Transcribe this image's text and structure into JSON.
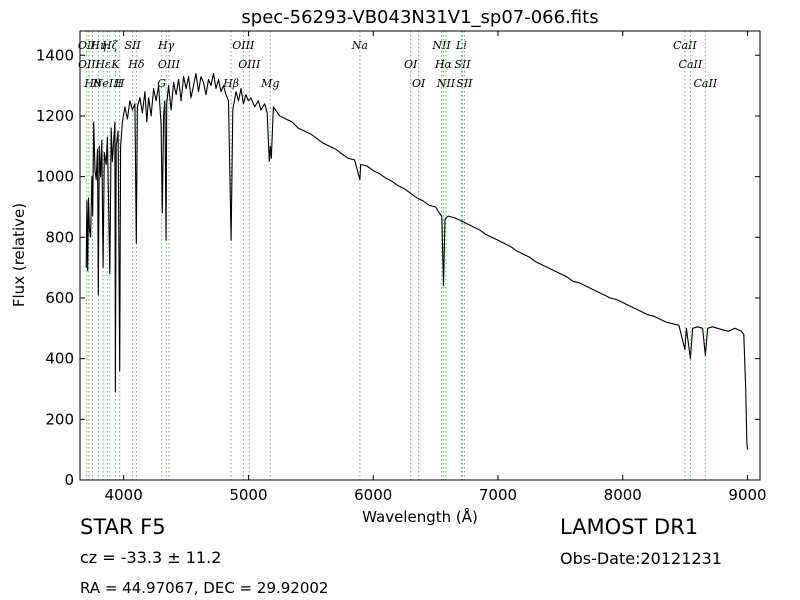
{
  "chart_data": {
    "type": "line",
    "title": "spec-56293-VB043N31V1_sp07-066.fits",
    "xlabel": "Wavelength (Å)",
    "ylabel": "Flux (relative)",
    "xlim": [
      3650,
      9100
    ],
    "ylim": [
      0,
      1480
    ],
    "x_ticks": [
      4000,
      5000,
      6000,
      7000,
      8000,
      9000
    ],
    "y_ticks": [
      0,
      200,
      400,
      600,
      800,
      1000,
      1200,
      1400
    ],
    "grid": false,
    "series": [
      {
        "line_color": "#000000",
        "points": [
          [
            3700,
            700
          ],
          [
            3705,
            920
          ],
          [
            3712,
            690
          ],
          [
            3718,
            930
          ],
          [
            3725,
            830
          ],
          [
            3735,
            800
          ],
          [
            3745,
            1000
          ],
          [
            3752,
            870
          ],
          [
            3760,
            1180
          ],
          [
            3770,
            1020
          ],
          [
            3780,
            990
          ],
          [
            3790,
            1090
          ],
          [
            3797,
            610
          ],
          [
            3805,
            1100
          ],
          [
            3815,
            1000
          ],
          [
            3825,
            1120
          ],
          [
            3835,
            700
          ],
          [
            3845,
            1080
          ],
          [
            3860,
            1040
          ],
          [
            3870,
            1130
          ],
          [
            3889,
            680
          ],
          [
            3900,
            1160
          ],
          [
            3910,
            1050
          ],
          [
            3930,
            1180
          ],
          [
            3934,
            290
          ],
          [
            3940,
            1100
          ],
          [
            3955,
            1150
          ],
          [
            3968,
            360
          ],
          [
            3975,
            1100
          ],
          [
            3990,
            1180
          ],
          [
            4010,
            1230
          ],
          [
            4030,
            1190
          ],
          [
            4050,
            1250
          ],
          [
            4070,
            1220
          ],
          [
            4090,
            1240
          ],
          [
            4101,
            780
          ],
          [
            4110,
            1230
          ],
          [
            4130,
            1260
          ],
          [
            4150,
            1210
          ],
          [
            4170,
            1280
          ],
          [
            4185,
            1180
          ],
          [
            4200,
            1260
          ],
          [
            4220,
            1200
          ],
          [
            4240,
            1290
          ],
          [
            4260,
            1250
          ],
          [
            4280,
            1300
          ],
          [
            4300,
            1170
          ],
          [
            4310,
            880
          ],
          [
            4320,
            1200
          ],
          [
            4330,
            1250
          ],
          [
            4340,
            790
          ],
          [
            4345,
            1240
          ],
          [
            4360,
            1300
          ],
          [
            4380,
            1220
          ],
          [
            4400,
            1310
          ],
          [
            4420,
            1270
          ],
          [
            4440,
            1320
          ],
          [
            4460,
            1250
          ],
          [
            4480,
            1330
          ],
          [
            4500,
            1290
          ],
          [
            4520,
            1330
          ],
          [
            4540,
            1260
          ],
          [
            4560,
            1300
          ],
          [
            4580,
            1340
          ],
          [
            4600,
            1280
          ],
          [
            4620,
            1330
          ],
          [
            4640,
            1310
          ],
          [
            4660,
            1270
          ],
          [
            4680,
            1320
          ],
          [
            4700,
            1300
          ],
          [
            4720,
            1340
          ],
          [
            4740,
            1290
          ],
          [
            4760,
            1320
          ],
          [
            4780,
            1280
          ],
          [
            4800,
            1300
          ],
          [
            4820,
            1270
          ],
          [
            4840,
            1250
          ],
          [
            4861,
            790
          ],
          [
            4875,
            1220
          ],
          [
            4900,
            1280
          ],
          [
            4920,
            1250
          ],
          [
            4940,
            1290
          ],
          [
            4960,
            1240
          ],
          [
            4980,
            1270
          ],
          [
            5000,
            1250
          ],
          [
            5020,
            1260
          ],
          [
            5050,
            1230
          ],
          [
            5080,
            1250
          ],
          [
            5100,
            1220
          ],
          [
            5130,
            1240
          ],
          [
            5150,
            1210
          ],
          [
            5167,
            1050
          ],
          [
            5175,
            1100
          ],
          [
            5183,
            1060
          ],
          [
            5200,
            1230
          ],
          [
            5250,
            1200
          ],
          [
            5300,
            1190
          ],
          [
            5350,
            1180
          ],
          [
            5400,
            1160
          ],
          [
            5450,
            1150
          ],
          [
            5500,
            1140
          ],
          [
            5550,
            1125
          ],
          [
            5600,
            1110
          ],
          [
            5650,
            1100
          ],
          [
            5700,
            1090
          ],
          [
            5750,
            1075
          ],
          [
            5800,
            1060
          ],
          [
            5850,
            1055
          ],
          [
            5893,
            990
          ],
          [
            5900,
            1040
          ],
          [
            5950,
            1035
          ],
          [
            6000,
            1020
          ],
          [
            6050,
            1010
          ],
          [
            6100,
            995
          ],
          [
            6150,
            985
          ],
          [
            6200,
            970
          ],
          [
            6250,
            960
          ],
          [
            6300,
            945
          ],
          [
            6350,
            930
          ],
          [
            6400,
            920
          ],
          [
            6450,
            905
          ],
          [
            6500,
            900
          ],
          [
            6530,
            880
          ],
          [
            6550,
            870
          ],
          [
            6563,
            640
          ],
          [
            6575,
            860
          ],
          [
            6600,
            870
          ],
          [
            6650,
            865
          ],
          [
            6700,
            855
          ],
          [
            6750,
            845
          ],
          [
            6800,
            835
          ],
          [
            6850,
            825
          ],
          [
            6900,
            810
          ],
          [
            6950,
            800
          ],
          [
            7000,
            790
          ],
          [
            7050,
            780
          ],
          [
            7100,
            770
          ],
          [
            7150,
            755
          ],
          [
            7200,
            745
          ],
          [
            7250,
            735
          ],
          [
            7300,
            720
          ],
          [
            7350,
            710
          ],
          [
            7400,
            700
          ],
          [
            7450,
            690
          ],
          [
            7500,
            680
          ],
          [
            7550,
            670
          ],
          [
            7600,
            655
          ],
          [
            7650,
            650
          ],
          [
            7700,
            640
          ],
          [
            7750,
            630
          ],
          [
            7800,
            620
          ],
          [
            7850,
            610
          ],
          [
            7900,
            600
          ],
          [
            7950,
            595
          ],
          [
            8000,
            585
          ],
          [
            8050,
            575
          ],
          [
            8100,
            565
          ],
          [
            8150,
            555
          ],
          [
            8200,
            545
          ],
          [
            8250,
            540
          ],
          [
            8300,
            530
          ],
          [
            8350,
            520
          ],
          [
            8400,
            515
          ],
          [
            8450,
            510
          ],
          [
            8498,
            430
          ],
          [
            8510,
            500
          ],
          [
            8542,
            400
          ],
          [
            8560,
            500
          ],
          [
            8600,
            505
          ],
          [
            8640,
            500
          ],
          [
            8662,
            410
          ],
          [
            8680,
            500
          ],
          [
            8720,
            505
          ],
          [
            8760,
            500
          ],
          [
            8800,
            495
          ],
          [
            8850,
            490
          ],
          [
            8900,
            500
          ],
          [
            8950,
            490
          ],
          [
            8970,
            480
          ],
          [
            8985,
            300
          ],
          [
            8995,
            120
          ],
          [
            9000,
            100
          ]
        ]
      }
    ],
    "lines": [
      {
        "x": 3704,
        "label": "OII"
      },
      {
        "x": 3722,
        "label": "OIII"
      },
      {
        "x": 3750,
        "label": "Hθ"
      },
      {
        "x": 3797,
        "label": "Hη"
      },
      {
        "x": 3835,
        "label": "Hε"
      },
      {
        "x": 3869,
        "label": "NeIII"
      },
      {
        "x": 3889,
        "label": "Hζ"
      },
      {
        "x": 3934,
        "label": "K"
      },
      {
        "x": 3968,
        "label": "H"
      },
      {
        "x": 4072,
        "label": "SII"
      },
      {
        "x": 4102,
        "label": "Hδ"
      },
      {
        "x": 4304,
        "label": "G"
      },
      {
        "x": 4340,
        "label": "Hγ"
      },
      {
        "x": 4363,
        "label": "OIII"
      },
      {
        "x": 4861,
        "label": "Hβ"
      },
      {
        "x": 4959,
        "label": "OIII"
      },
      {
        "x": 5007,
        "label": "OIII"
      },
      {
        "x": 5175,
        "label": "Mg"
      },
      {
        "x": 5893,
        "label": "Na"
      },
      {
        "x": 6300,
        "label": "OI"
      },
      {
        "x": 6364,
        "label": "OI"
      },
      {
        "x": 6548,
        "label": "NII"
      },
      {
        "x": 6563,
        "label": "Hα"
      },
      {
        "x": 6583,
        "label": "NII"
      },
      {
        "x": 6707,
        "label": "Li"
      },
      {
        "x": 6716,
        "label": "SII"
      },
      {
        "x": 6731,
        "label": "SII"
      },
      {
        "x": 8498,
        "label": "CaII"
      },
      {
        "x": 8542,
        "label": "CaII"
      },
      {
        "x": 8662,
        "label": "CaII"
      }
    ]
  },
  "info": {
    "class_label": "STAR   F5",
    "survey_label": "LAMOST DR1",
    "cz_label": "cz = -33.3 ± 11.2",
    "obs_date_label": "Obs-Date:20121231",
    "coords_label": "RA = 44.97067, DEC = 29.92002"
  }
}
